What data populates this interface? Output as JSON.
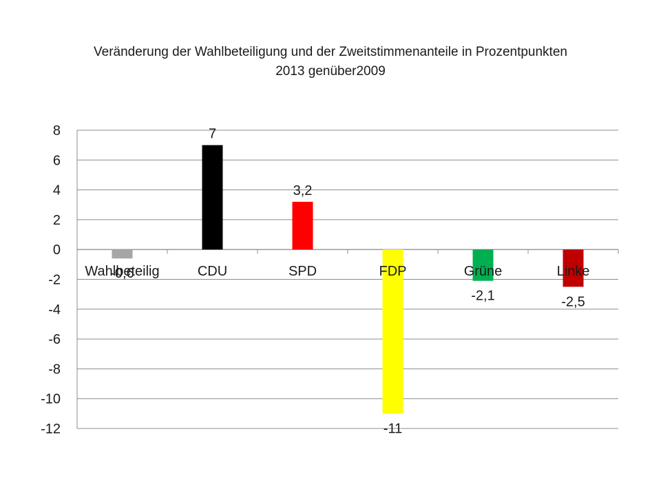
{
  "title_line1": "Veränderung der Wahlbeteiligung und der Zweitstimmenanteile in Prozentpunkten",
  "title_line2": "2013 genüber2009",
  "chart_data": {
    "type": "bar",
    "categories": [
      "Wahlbeteilig",
      "CDU",
      "SPD",
      "FDP",
      "Grüne",
      "Linke"
    ],
    "values": [
      -0.6,
      7,
      3.2,
      -11,
      -2.1,
      -2.5
    ],
    "value_labels": [
      "-0,6",
      "7",
      "3,2",
      "-11",
      "-2,1",
      "-2,5"
    ],
    "colors": [
      "#a6a6a6",
      "#000000",
      "#ff0000",
      "#ffff00",
      "#00b050",
      "#c00000"
    ],
    "ylim": [
      -12,
      8
    ],
    "yticks": [
      8,
      6,
      4,
      2,
      0,
      -2,
      -4,
      -6,
      -8,
      -10,
      -12
    ],
    "grid": true,
    "legend": "none"
  }
}
